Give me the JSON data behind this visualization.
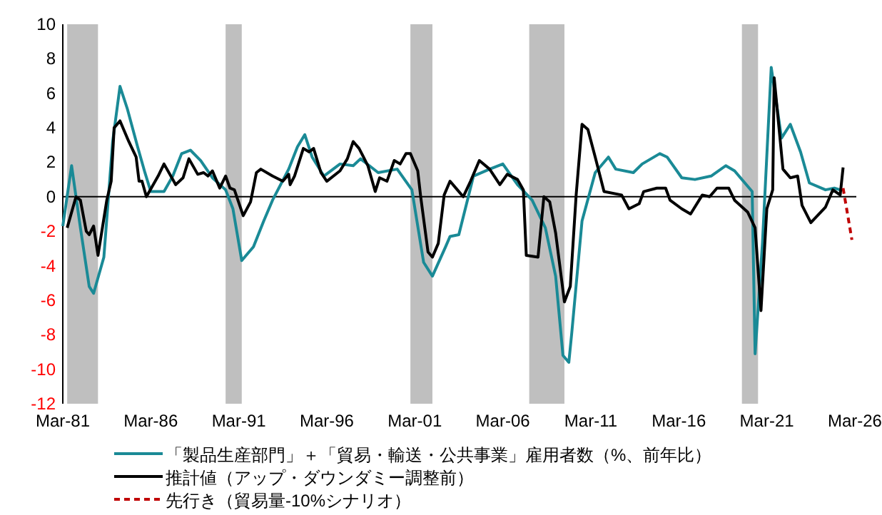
{
  "chart_data": {
    "type": "line",
    "xlim": [
      "1981-03",
      "2026-04"
    ],
    "xticks": [
      {
        "value": "1981-03",
        "label": "Mar-81"
      },
      {
        "value": "1986-03",
        "label": "Mar-86"
      },
      {
        "value": "1991-03",
        "label": "Mar-91"
      },
      {
        "value": "1996-03",
        "label": "Mar-96"
      },
      {
        "value": "2001-03",
        "label": "Mar-01"
      },
      {
        "value": "2006-03",
        "label": "Mar-06"
      },
      {
        "value": "2011-03",
        "label": "Mar-11"
      },
      {
        "value": "2016-03",
        "label": "Mar-16"
      },
      {
        "value": "2021-03",
        "label": "Mar-21"
      },
      {
        "value": "2026-03",
        "label": "Mar-26"
      }
    ],
    "ylim": [
      -12,
      10
    ],
    "yticks": [
      -12,
      -10,
      -8,
      -6,
      -4,
      -2,
      0,
      2,
      4,
      6,
      8,
      10
    ],
    "legend": "bottom",
    "bands": [
      {
        "axis": "x",
        "from": "1981-06",
        "to": "1983-03",
        "color": "#bfbfbf"
      },
      {
        "axis": "x",
        "from": "1990-06",
        "to": "1991-05",
        "color": "#bfbfbf"
      },
      {
        "axis": "x",
        "from": "2000-12",
        "to": "2002-03",
        "color": "#bfbfbf"
      },
      {
        "axis": "x",
        "from": "2007-09",
        "to": "2009-09",
        "color": "#bfbfbf"
      },
      {
        "axis": "x",
        "from": "2019-10",
        "to": "2020-09",
        "color": "#bfbfbf"
      }
    ],
    "series": [
      {
        "name": "「製品生産部門」＋「貿易・輸送・公共事業」雇用者数（%、前年比）",
        "color": "#1a8a96",
        "line_style": "solid",
        "x": [
          "1981-03",
          "1981-09",
          "1982-03",
          "1982-09",
          "1982-12",
          "1983-07",
          "1984-01",
          "1984-06",
          "1984-11",
          "1985-06",
          "1985-11",
          "1986-03",
          "1986-12",
          "1987-06",
          "1987-12",
          "1988-06",
          "1989-01",
          "1989-09",
          "1990-06",
          "1990-11",
          "1991-05",
          "1992-01",
          "1992-08",
          "1993-02",
          "1994-01",
          "1994-07",
          "1994-12",
          "1995-05",
          "1996-01",
          "1996-12",
          "1997-09",
          "1998-02",
          "1999-02",
          "2000-03",
          "2001-01",
          "2001-09",
          "2002-03",
          "2002-12",
          "2003-03",
          "2003-09",
          "2004-07",
          "2005-06",
          "2006-03",
          "2007-01",
          "2007-11",
          "2008-08",
          "2009-03",
          "2009-08",
          "2009-12",
          "2010-02",
          "2010-09",
          "2011-06",
          "2012-03",
          "2012-08",
          "2013-08",
          "2014-02",
          "2015-02",
          "2015-07",
          "2016-05",
          "2017-02",
          "2018-01",
          "2018-11",
          "2019-05",
          "2020-05",
          "2020-07",
          "2020-12",
          "2021-06",
          "2022-01",
          "2022-07",
          "2023-02",
          "2023-08",
          "2024-07",
          "2025-01",
          "2025-05"
        ],
        "values": [
          -1.7,
          1.8,
          -1.8,
          -5.2,
          -5.6,
          -3.5,
          3.2,
          6.4,
          5.1,
          2.9,
          1.4,
          0.3,
          0.3,
          1.2,
          2.5,
          2.7,
          2.1,
          1.1,
          0.4,
          -0.7,
          -3.7,
          -2.9,
          -1.4,
          -0.2,
          1.6,
          2.9,
          3.6,
          2.3,
          1.2,
          1.9,
          1.8,
          2.2,
          1.4,
          1.6,
          0.4,
          -3.8,
          -4.6,
          -2.9,
          -2.3,
          -2.2,
          1.2,
          1.6,
          1.9,
          0.7,
          -0.2,
          -1.8,
          -4.6,
          -9.2,
          -9.6,
          -7.9,
          -1.4,
          1.4,
          2.3,
          1.6,
          1.4,
          1.9,
          2.5,
          2.3,
          1.1,
          1.0,
          1.2,
          1.8,
          1.5,
          0.3,
          -9.1,
          -2.7,
          7.5,
          3.4,
          4.2,
          2.6,
          0.8,
          0.4,
          0.5,
          0.4
        ]
      },
      {
        "name": "推計値（アップ・ダウンダミー調整前）",
        "color": "#000000",
        "line_style": "solid",
        "x": [
          "1981-06",
          "1981-12",
          "1982-03",
          "1982-07",
          "1982-09",
          "1982-12",
          "1983-03",
          "1983-09",
          "1983-12",
          "1984-02",
          "1984-06",
          "1984-12",
          "1985-05",
          "1985-07",
          "1985-09",
          "1985-12",
          "1986-08",
          "1986-12",
          "1987-08",
          "1988-01",
          "1988-05",
          "1988-11",
          "1989-03",
          "1989-06",
          "1989-09",
          "1990-02",
          "1990-06",
          "1990-09",
          "1990-12",
          "1991-06",
          "1991-11",
          "1992-03",
          "1992-06",
          "1993-02",
          "1993-09",
          "1994-01",
          "1994-02",
          "1994-05",
          "1994-11",
          "1995-03",
          "1995-06",
          "1995-11",
          "1996-03",
          "1996-12",
          "1997-05",
          "1997-09",
          "1998-01",
          "1998-07",
          "1998-12",
          "1999-03",
          "1999-08",
          "2000-01",
          "2000-05",
          "2000-09",
          "2000-12",
          "2001-05",
          "2001-07",
          "2001-12",
          "2002-03",
          "2002-07",
          "2002-11",
          "2003-03",
          "2003-08",
          "2003-12",
          "2004-05",
          "2004-11",
          "2005-06",
          "2006-01",
          "2006-06",
          "2007-01",
          "2007-05",
          "2007-07",
          "2008-03",
          "2008-07",
          "2008-11",
          "2009-03",
          "2009-09",
          "2010-01",
          "2010-05",
          "2010-09",
          "2011-01",
          "2011-06",
          "2011-12",
          "2012-12",
          "2013-05",
          "2013-12",
          "2014-03",
          "2014-12",
          "2015-06",
          "2015-09",
          "2016-05",
          "2016-11",
          "2017-07",
          "2017-12",
          "2018-05",
          "2019-01",
          "2019-05",
          "2020-02",
          "2020-07",
          "2020-11",
          "2021-03",
          "2021-07",
          "2021-08",
          "2022-02",
          "2022-07",
          "2022-12",
          "2023-03",
          "2023-09",
          "2024-07",
          "2024-12",
          "2025-05",
          "2025-07"
        ],
        "values": [
          -1.8,
          0.0,
          -0.2,
          -2.0,
          -2.2,
          -1.7,
          -3.4,
          -0.2,
          0.9,
          4.0,
          4.4,
          3.2,
          2.3,
          0.9,
          0.9,
          0.0,
          1.2,
          1.9,
          0.7,
          1.1,
          2.2,
          1.3,
          1.4,
          1.2,
          1.5,
          0.5,
          1.2,
          0.5,
          0.4,
          -1.1,
          -0.3,
          1.4,
          1.6,
          1.2,
          0.9,
          1.3,
          0.7,
          1.2,
          2.8,
          2.6,
          2.8,
          1.4,
          0.9,
          1.5,
          2.2,
          3.2,
          2.8,
          1.8,
          0.3,
          1.1,
          0.9,
          2.1,
          1.9,
          2.5,
          2.5,
          1.5,
          0.0,
          -3.2,
          -3.5,
          -2.7,
          0.1,
          0.9,
          0.4,
          0.0,
          0.9,
          2.1,
          1.6,
          0.7,
          1.3,
          1.0,
          0.4,
          -3.4,
          -3.5,
          0.0,
          -0.3,
          -2.1,
          -6.1,
          -5.2,
          0.1,
          4.2,
          3.9,
          2.3,
          0.3,
          0.1,
          -0.7,
          -0.4,
          0.3,
          0.5,
          0.5,
          -0.2,
          -0.7,
          -1.0,
          0.1,
          0.0,
          0.5,
          0.5,
          -0.2,
          -0.9,
          -1.8,
          -6.6,
          -0.7,
          0.4,
          6.9,
          1.6,
          1.1,
          1.2,
          -0.5,
          -1.5,
          -0.6,
          0.4,
          0.1,
          1.7
        ]
      },
      {
        "name": "先行き（貿易量-10%シナリオ）",
        "color": "#c00000",
        "line_style": "dashed",
        "x": [
          "2025-07",
          "2026-01"
        ],
        "values": [
          0.5,
          -2.5
        ]
      }
    ]
  }
}
